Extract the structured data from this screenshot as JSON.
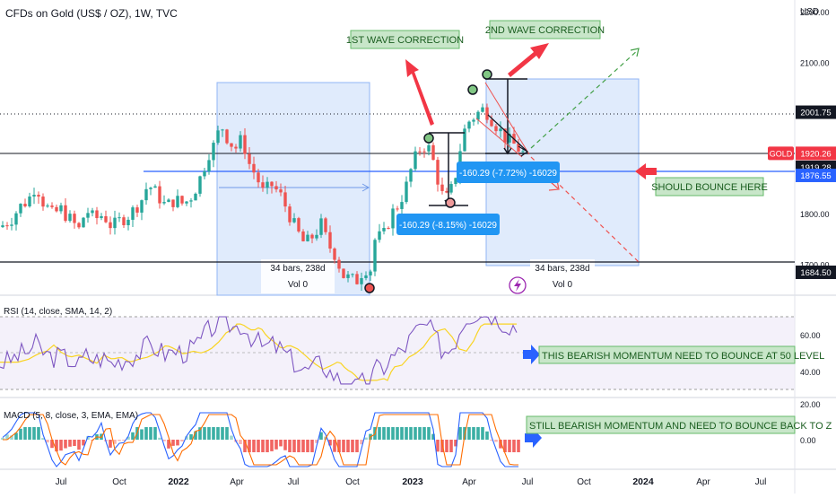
{
  "header": {
    "symbol_title": "CFDs on Gold (US$ / OZ), 1W, TVC",
    "currency": "USD"
  },
  "chart_data": [
    {
      "type": "line",
      "name": "price",
      "x_axis": {
        "ticks": [
          "Jul",
          "Oct",
          "2022",
          "Apr",
          "Jul",
          "Oct",
          "2023",
          "Apr",
          "Jul",
          "Oct",
          "2024",
          "Apr",
          "Jul"
        ],
        "bold_ticks": [
          "2022",
          "2023",
          "2024"
        ],
        "highlight_tick": "Jul"
      },
      "y_axis": {
        "ticks": [
          2200.0,
          2100.0,
          2000.0,
          1800.0,
          1700.0
        ],
        "tick_labels": [
          "2200.00",
          "2100.00",
          "",
          "1800.00",
          "1700.00"
        ],
        "range": [
          1640,
          2225
        ]
      },
      "price_labels": [
        {
          "text": "2001.75",
          "value": 2001.75,
          "style": "dark"
        },
        {
          "text": "GOLD",
          "value": 1920.26,
          "style": "red-tag"
        },
        {
          "text": "1920.26",
          "value": 1920.26,
          "style": "red"
        },
        {
          "text": "1919.28",
          "value": 1919.28,
          "style": "dark"
        },
        {
          "text": "1876.55",
          "value": 1876.55,
          "style": "blue"
        },
        {
          "text": "1684.50",
          "value": 1684.5,
          "style": "dark"
        }
      ],
      "horizontal_lines": [
        {
          "value": 2001.75,
          "style": "dotted"
        },
        {
          "value": 1920.26,
          "style": "solid"
        },
        {
          "value": 1876.55,
          "style": "blue"
        },
        {
          "value": 1684.5,
          "style": "solid"
        }
      ],
      "annotations": {
        "wave1": "1ST WAVE CORRECTION",
        "wave2": "2ND WAVE CORRECTION",
        "bounce": "SHOULD BOUNCE HERE",
        "range_label_1": "34 bars, 238d",
        "range_vol_1": "Vol 0",
        "range_label_2": "34 bars, 238d",
        "range_vol_2": "Vol 0",
        "measure_1": "-160.29 (-8.15%) -16029",
        "measure_2": "-160.29 (-7.72%) -16029"
      },
      "legend": "none",
      "grid": false
    },
    {
      "type": "line",
      "name": "rsi",
      "title": "RSI (14, close, SMA, 14, 2)",
      "y_ticks": [
        "60.00",
        "40.00"
      ],
      "annotation": "THIS BEARISH MOMENTUM NEED TO BOUNCE AT 50 LEVEL"
    },
    {
      "type": "bar",
      "name": "macd",
      "title": "MACD (5, 8, close, 3, EMA, EMA)",
      "y_ticks": [
        "20.00",
        "0.00"
      ],
      "annotation": "STILL BEARISH MOMENTUM AND NEED TO BOUNCE BACK TO Z"
    }
  ],
  "colors": {
    "up": "#26a69a",
    "down": "#ef5350",
    "range_fill": "#cfe0fb",
    "blue_line": "#2962ff",
    "label_green_bg": "#c8e6c9",
    "label_green_text": "#1b5e20",
    "red_arrow": "#f23645",
    "rsi_line": "#7e57c2",
    "rsi_sma": "#f9d423",
    "macd_line": "#2962ff",
    "signal_line": "#ff6d00"
  }
}
